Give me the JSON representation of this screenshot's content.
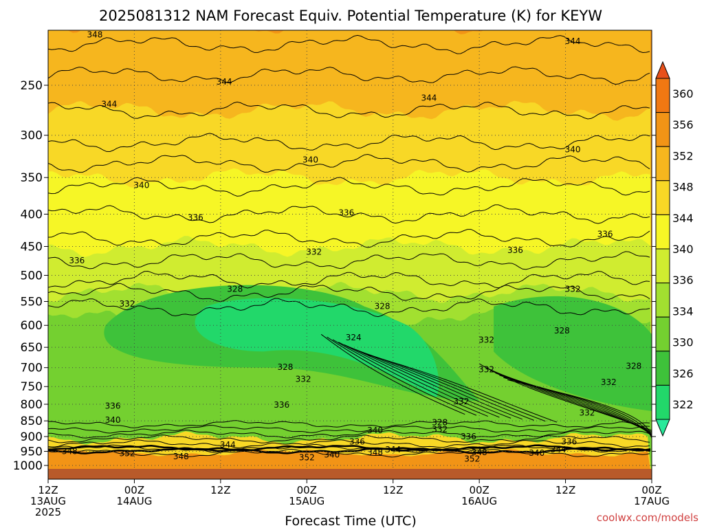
{
  "chart_data": {
    "type": "heatmap",
    "title": "2025081312 NAM Forecast Equiv. Potential Temperature (K) for KEYW",
    "xlabel": "Forecast Time (UTC)",
    "ylabel": "",
    "x_ticks": [
      {
        "hours": 0,
        "line1": "12Z",
        "line2": "13AUG",
        "line3": "2025"
      },
      {
        "hours": 12,
        "line1": "00Z",
        "line2": "14AUG",
        "line3": ""
      },
      {
        "hours": 24,
        "line1": "12Z",
        "line2": "",
        "line3": ""
      },
      {
        "hours": 36,
        "line1": "00Z",
        "line2": "15AUG",
        "line3": ""
      },
      {
        "hours": 48,
        "line1": "12Z",
        "line2": "",
        "line3": ""
      },
      {
        "hours": 60,
        "line1": "00Z",
        "line2": "16AUG",
        "line3": ""
      },
      {
        "hours": 72,
        "line1": "12Z",
        "line2": "",
        "line3": ""
      },
      {
        "hours": 84,
        "line1": "00Z",
        "line2": "17AUG",
        "line3": ""
      }
    ],
    "y_ticks": [
      250,
      300,
      350,
      400,
      450,
      500,
      550,
      600,
      650,
      700,
      750,
      800,
      850,
      900,
      950,
      1000
    ],
    "y_scale": "log-pressure, inverted",
    "ylim": [
      1000,
      200
    ],
    "xlim_hours": [
      0,
      84
    ],
    "colorbar": {
      "levels": [
        322,
        326,
        330,
        334,
        336,
        340,
        344,
        348,
        352,
        356,
        360
      ],
      "colors": [
        "#28e99a",
        "#22d86a",
        "#3ec23a",
        "#74d030",
        "#a2e030",
        "#d0ec30",
        "#f6f626",
        "#f8d826",
        "#f6b61e",
        "#f29416",
        "#f07812",
        "#e8501a"
      ]
    },
    "profile_by_pressure": [
      {
        "p": 200,
        "value": 348
      },
      {
        "p": 250,
        "value": 345
      },
      {
        "p": 300,
        "value": 343
      },
      {
        "p": 350,
        "value": 340
      },
      {
        "p": 400,
        "value": 338
      },
      {
        "p": 450,
        "value": 336
      },
      {
        "p": 500,
        "value": 334
      },
      {
        "p": 550,
        "value": 331
      },
      {
        "p": 600,
        "value": 329
      },
      {
        "p": 650,
        "value": 329
      },
      {
        "p": 700,
        "value": 330
      },
      {
        "p": 750,
        "value": 332
      },
      {
        "p": 800,
        "value": 334
      },
      {
        "p": 850,
        "value": 337
      },
      {
        "p": 900,
        "value": 341
      },
      {
        "p": 950,
        "value": 350
      },
      {
        "p": 1000,
        "value": 352
      }
    ],
    "contour_labels": [
      {
        "hours": 6.5,
        "p": 208,
        "text": "348"
      },
      {
        "hours": 24.5,
        "p": 247,
        "text": "344"
      },
      {
        "hours": 8.5,
        "p": 268,
        "text": "344"
      },
      {
        "hours": 53,
        "p": 262,
        "text": "344"
      },
      {
        "hours": 73,
        "p": 213,
        "text": "344"
      },
      {
        "hours": 36.5,
        "p": 328,
        "text": "340"
      },
      {
        "hours": 13,
        "p": 360,
        "text": "340"
      },
      {
        "hours": 73,
        "p": 316,
        "text": "340"
      },
      {
        "hours": 20.5,
        "p": 405,
        "text": "336"
      },
      {
        "hours": 41.5,
        "p": 398,
        "text": "336"
      },
      {
        "hours": 4,
        "p": 474,
        "text": "336"
      },
      {
        "hours": 65,
        "p": 456,
        "text": "336"
      },
      {
        "hours": 77.5,
        "p": 430,
        "text": "336"
      },
      {
        "hours": 37,
        "p": 459,
        "text": "332"
      },
      {
        "hours": 11,
        "p": 555,
        "text": "332"
      },
      {
        "hours": 73,
        "p": 526,
        "text": "332"
      },
      {
        "hours": 26,
        "p": 526,
        "text": "328"
      },
      {
        "hours": 46.5,
        "p": 560,
        "text": "328"
      },
      {
        "hours": 42.5,
        "p": 627,
        "text": "324"
      },
      {
        "hours": 71.5,
        "p": 612,
        "text": "328"
      },
      {
        "hours": 61,
        "p": 633,
        "text": "332"
      },
      {
        "hours": 33,
        "p": 699,
        "text": "328"
      },
      {
        "hours": 35.5,
        "p": 730,
        "text": "332"
      },
      {
        "hours": 61,
        "p": 705,
        "text": "332"
      },
      {
        "hours": 81.5,
        "p": 696,
        "text": "328"
      },
      {
        "hours": 78,
        "p": 738,
        "text": "332"
      },
      {
        "hours": 57.5,
        "p": 792,
        "text": "332"
      },
      {
        "hours": 32.5,
        "p": 802,
        "text": "336"
      },
      {
        "hours": 9,
        "p": 805,
        "text": "336"
      },
      {
        "hours": 9,
        "p": 847,
        "text": "340"
      },
      {
        "hours": 75,
        "p": 826,
        "text": "332"
      },
      {
        "hours": 54.5,
        "p": 855,
        "text": "328"
      },
      {
        "hours": 54.5,
        "p": 877,
        "text": "332"
      },
      {
        "hours": 45.5,
        "p": 880,
        "text": "340"
      },
      {
        "hours": 58.5,
        "p": 900,
        "text": "336"
      },
      {
        "hours": 43,
        "p": 917,
        "text": "336"
      },
      {
        "hours": 72.5,
        "p": 917,
        "text": "336"
      },
      {
        "hours": 25,
        "p": 927,
        "text": "344"
      },
      {
        "hours": 48,
        "p": 944,
        "text": "344"
      },
      {
        "hours": 71,
        "p": 944,
        "text": "344"
      },
      {
        "hours": 3,
        "p": 950,
        "text": "348"
      },
      {
        "hours": 45.5,
        "p": 953,
        "text": "348"
      },
      {
        "hours": 60,
        "p": 953,
        "text": "348"
      },
      {
        "hours": 11,
        "p": 957,
        "text": "352"
      },
      {
        "hours": 18.5,
        "p": 968,
        "text": "348"
      },
      {
        "hours": 68,
        "p": 956,
        "text": "340"
      },
      {
        "hours": 39.5,
        "p": 962,
        "text": "340"
      },
      {
        "hours": 36,
        "p": 972,
        "text": "352"
      },
      {
        "hours": 59,
        "p": 977,
        "text": "352"
      }
    ]
  },
  "credit": "coolwx.com/models"
}
